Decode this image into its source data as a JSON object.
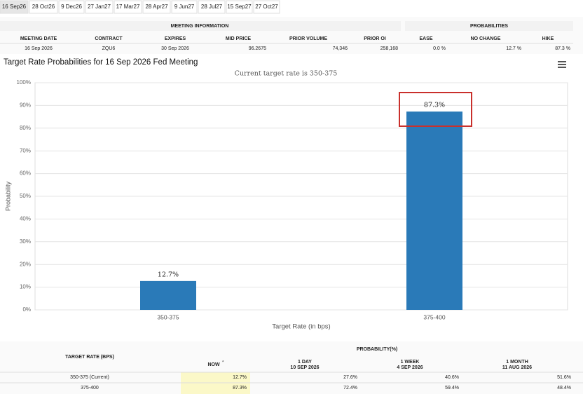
{
  "tabs": [
    "16 Sep26",
    "28 Oct26",
    "9 Dec26",
    "27 Jan27",
    "17 Mar27",
    "28 Apr27",
    "9 Jun27",
    "28 Jul27",
    "15 Sep27",
    "27 Oct27"
  ],
  "meeting_info": {
    "title": "MEETING INFORMATION",
    "headers": [
      "MEETING DATE",
      "CONTRACT",
      "EXPIRES",
      "MID PRICE",
      "PRIOR VOLUME",
      "PRIOR OI"
    ],
    "row": [
      "16 Sep 2026",
      "ZQU6",
      "30 Sep 2026",
      "96.2675",
      "74,346",
      "258,168"
    ]
  },
  "probabilities": {
    "title": "PROBABILITIES",
    "headers": [
      "EASE",
      "NO CHANGE",
      "HIKE"
    ],
    "row": [
      "0.0 %",
      "12.7 %",
      "87.3 %"
    ]
  },
  "chart_data": {
    "type": "bar",
    "title": "Target Rate Probabilities for 16 Sep 2026 Fed Meeting",
    "subtitle": "Current target rate is 350-375",
    "x_label": "Target Rate (in bps)",
    "y_label": "Probability",
    "categories": [
      "350-375",
      "375-400"
    ],
    "values": [
      12.7,
      87.3
    ],
    "value_labels": [
      "12.7%",
      "87.3%"
    ],
    "color": "#2a7ab8",
    "ylim": [
      0,
      100
    ],
    "yticks": [
      {
        "value": 0,
        "label": "0%"
      },
      {
        "value": 10,
        "label": "10%"
      },
      {
        "value": 20,
        "label": "20%"
      },
      {
        "value": 30,
        "label": "30%"
      },
      {
        "value": 40,
        "label": "40%"
      },
      {
        "value": 50,
        "label": "50%"
      },
      {
        "value": 60,
        "label": "60%"
      },
      {
        "value": 70,
        "label": "70%"
      },
      {
        "value": 80,
        "label": "80%"
      },
      {
        "value": 90,
        "label": "90%"
      },
      {
        "value": 100,
        "label": "100%"
      }
    ],
    "grid": true
  },
  "probability_table": {
    "title": "PROBABILITY(%)",
    "rate_header": "TARGET RATE (BPS)",
    "columns": [
      {
        "label": "NOW",
        "note": "*"
      },
      {
        "label": "1 DAY",
        "date": "10 SEP 2026"
      },
      {
        "label": "1 WEEK",
        "date": "4 SEP 2026"
      },
      {
        "label": "1 MONTH",
        "date": "11 AUG 2026"
      }
    ],
    "rows": [
      [
        "350-375 (Current)",
        "12.7%",
        "27.6%",
        "40.6%",
        "51.6%"
      ],
      [
        "375-400",
        "87.3%",
        "72.4%",
        "59.4%",
        "48.4%"
      ]
    ]
  }
}
